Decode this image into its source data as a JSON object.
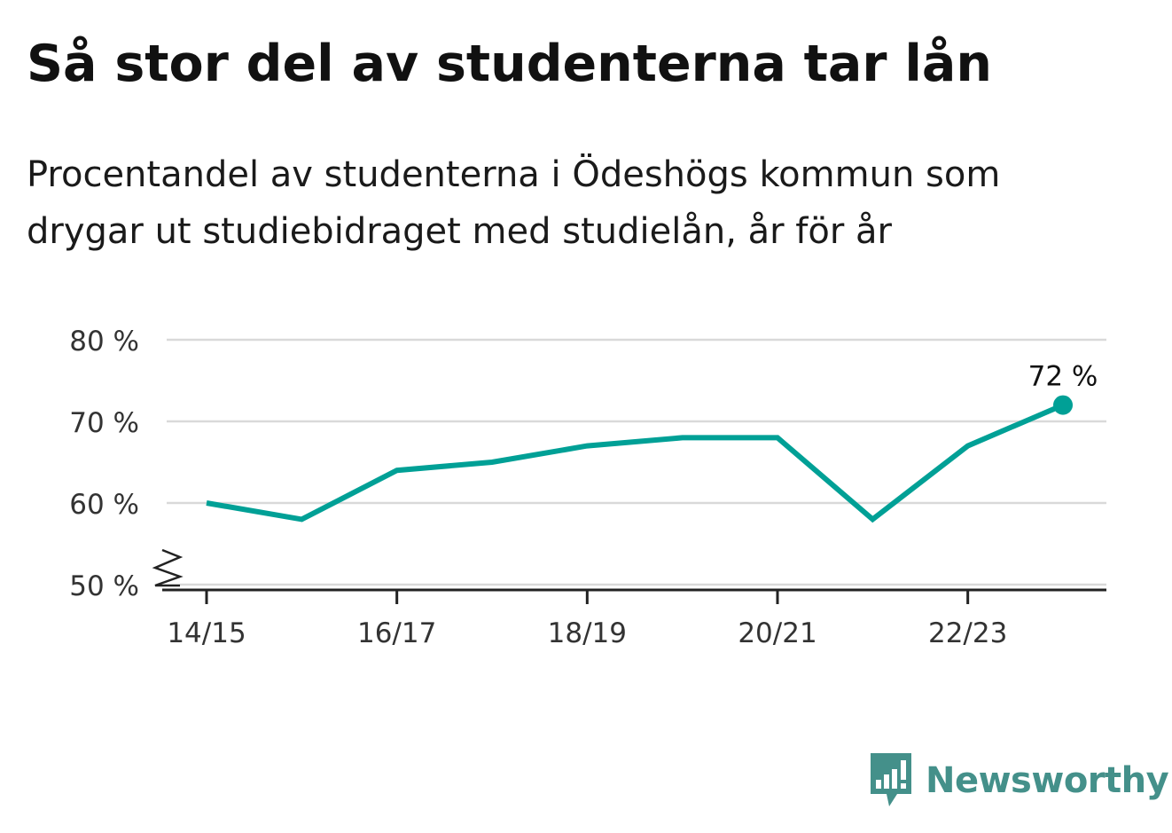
{
  "title": "Så stor del av studenterna tar lån",
  "subtitle": "Procentandel av studenterna i Ödeshögs kommun som drygar ut studiebidraget med studielån, år för år",
  "brand": {
    "name": "Newsworthy",
    "color": "#44908a",
    "icon": "newsworthy-bar-chart-speech-bubble-icon"
  },
  "chart_data": {
    "type": "line",
    "x": [
      "14/15",
      "15/16",
      "16/17",
      "17/18",
      "18/19",
      "19/20",
      "20/21",
      "21/22",
      "22/23",
      "23/24"
    ],
    "series": [
      {
        "values": [
          60,
          58,
          64,
          65,
          67,
          68,
          68,
          58,
          67,
          72
        ],
        "color": "#00a096"
      }
    ],
    "x_tick_labels": [
      "14/15",
      "16/17",
      "18/19",
      "20/21",
      "22/23"
    ],
    "y_ticks": [
      50,
      60,
      70,
      80
    ],
    "y_tick_labels": [
      "50 %",
      "60 %",
      "70 %",
      "80 %"
    ],
    "ylim": [
      50,
      80
    ],
    "y_axis_broken": true,
    "grid": true,
    "last_point_label": "72 %",
    "xlabel": "",
    "ylabel": ""
  }
}
